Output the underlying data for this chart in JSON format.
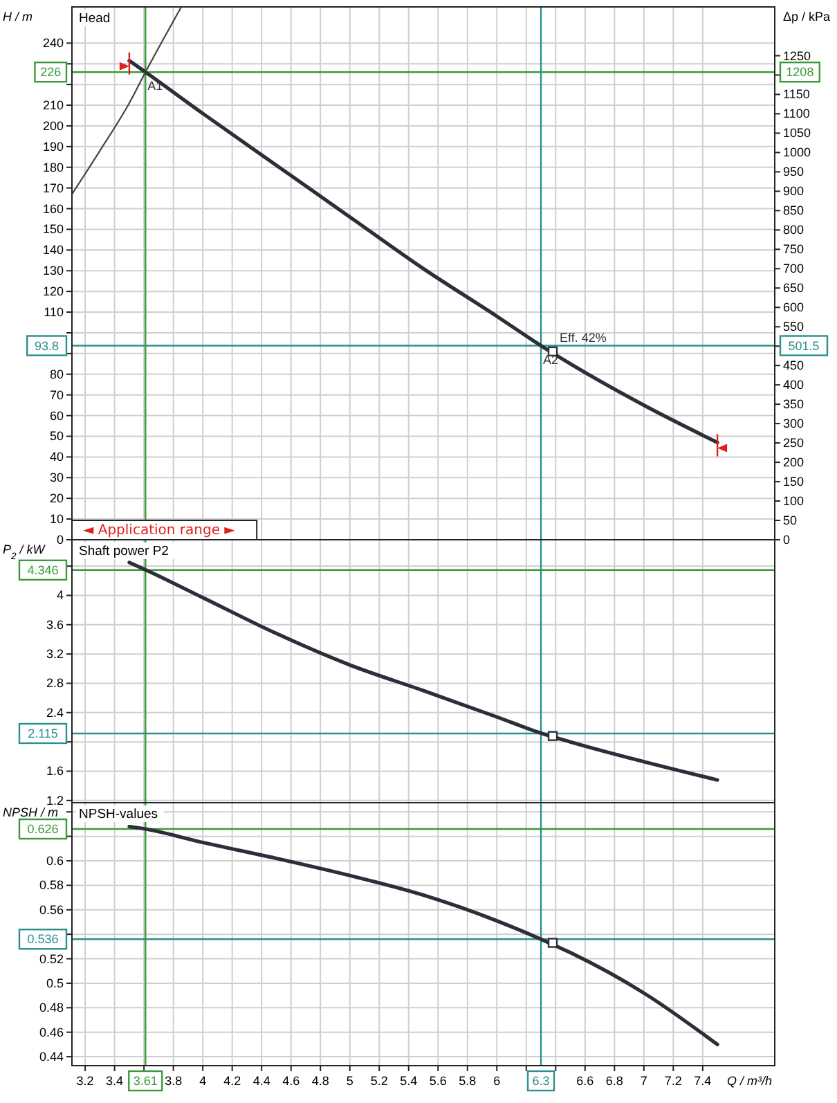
{
  "chart_data": [
    {
      "type": "line",
      "title": "Head",
      "ylabel": "H / m",
      "y2label": "Δp / kPa",
      "xlim": [
        3.11,
        7.89
      ],
      "xticks": [
        3.2,
        3.4,
        3.6,
        3.8,
        4,
        4.2,
        4.4,
        4.6,
        4.8,
        5,
        5.2,
        5.4,
        5.6,
        5.8,
        6,
        6.2,
        6.4,
        6.6,
        6.8,
        7,
        7.2,
        7.4
      ],
      "ylim": [
        0,
        257.5
      ],
      "yticks": [
        0,
        10,
        20,
        30,
        40,
        50,
        60,
        70,
        80,
        {
          "value": 90,
          "label": null
        },
        {
          "value": 100,
          "label": null
        },
        110,
        120,
        130,
        140,
        150,
        160,
        170,
        180,
        190,
        200,
        210,
        {
          "value": 220,
          "label": null
        },
        {
          "value": 230,
          "label": null
        },
        240
      ],
      "y2lim": [
        0,
        1376
      ],
      "y2ticks": [
        0,
        50,
        100,
        150,
        200,
        250,
        300,
        350,
        400,
        450,
        {
          "value": 500,
          "label": null
        },
        550,
        600,
        650,
        700,
        750,
        800,
        850,
        900,
        950,
        1000,
        1050,
        1100,
        1150,
        {
          "value": 1200,
          "label": null
        },
        1250
      ],
      "tick_labels": "y",
      "grid": true,
      "series": [
        {
          "color": "#2b2f3a",
          "x": [
            3.5,
            3.61,
            4.0,
            4.5,
            5.0,
            5.5,
            6.0,
            6.3,
            6.5,
            7.0,
            7.5
          ],
          "values": [
            231.5,
            226,
            206,
            181,
            156,
            131,
            108,
            93.8,
            85,
            65,
            47
          ]
        },
        {
          "color": "#444444",
          "x": [
            3.11,
            3.3,
            3.5,
            3.61,
            3.85
          ],
          "values": [
            167,
            188,
            211,
            226,
            257
          ]
        },
        {
          "type": "scatter",
          "marker": "square",
          "color": "#2b2f3a",
          "x": [
            6.38
          ],
          "values": [
            91
          ]
        }
      ],
      "ref_lines": [
        {
          "axis": "y",
          "value": 226,
          "label": "226",
          "color": "#3a9a3a"
        },
        {
          "axis": "y",
          "value": 93.8,
          "label": "93.8",
          "color": "#2a8f8f"
        },
        {
          "axis": "x",
          "value": 3.61,
          "color": "#3a9a3a"
        },
        {
          "axis": "x",
          "value": 6.3,
          "color": "#2a8f8f"
        }
      ],
      "annotations": [
        {
          "text": "1208",
          "x": 7.89,
          "y": 226
        },
        {
          "text": "501.5",
          "x": 7.89,
          "y": 93.8
        },
        {
          "text": "A1",
          "x": 3.61,
          "y": 226
        },
        {
          "text": "A2",
          "x": 6.3,
          "y": 93.8
        },
        {
          "text": "Eff.  42%",
          "x": 6.38,
          "y": 93.8
        },
        "◄ Application range ►"
      ]
    },
    {
      "type": "line",
      "title": "Shaft power P2",
      "ylabel": "P$_{2}$ / kW",
      "xlim": [
        3.11,
        7.89
      ],
      "xticks": [
        3.2,
        3.4,
        3.6,
        3.8,
        4,
        4.2,
        4.4,
        4.6,
        4.8,
        5,
        5.2,
        5.4,
        5.6,
        5.8,
        6,
        6.2,
        6.4,
        6.6,
        6.8,
        7,
        7.2,
        7.4
      ],
      "ylim": [
        1.17,
        4.76
      ],
      "yticks": [
        1.2,
        1.6,
        {
          "value": 2,
          "label": null
        },
        2.4,
        2.8,
        3.2,
        3.6,
        4,
        {
          "value": 4.4,
          "label": null
        }
      ],
      "tick_labels": "y",
      "grid": true,
      "series": [
        {
          "color": "#2b2f3a",
          "x": [
            3.5,
            3.61,
            4.0,
            4.5,
            5.0,
            5.5,
            6.0,
            6.3,
            6.5,
            7.0,
            7.5
          ],
          "values": [
            4.45,
            4.35,
            3.97,
            3.48,
            3.05,
            2.7,
            2.34,
            2.12,
            2.0,
            1.73,
            1.48
          ]
        },
        {
          "type": "scatter",
          "marker": "square",
          "color": "#2b2f3a",
          "x": [
            6.38
          ],
          "values": [
            2.08
          ]
        }
      ],
      "ref_lines": [
        {
          "axis": "y",
          "value": 4.346,
          "label": "4.346",
          "color": "#3a9a3a"
        },
        {
          "axis": "y",
          "value": 2.115,
          "label": "2.115",
          "color": "#2a8f8f"
        },
        {
          "axis": "x",
          "value": 3.61,
          "color": "#3a9a3a"
        },
        {
          "axis": "x",
          "value": 6.3,
          "color": "#2a8f8f"
        }
      ]
    },
    {
      "type": "line",
      "title": "NPSH-values",
      "ylabel": "NPSH / m",
      "xlabel": "Q / m³/h",
      "xlim": [
        3.11,
        7.89
      ],
      "xticks": [
        3.2,
        3.4,
        {
          "value": 3.6,
          "label": null
        },
        3.8,
        4,
        4.2,
        4.4,
        4.6,
        4.8,
        5,
        5.2,
        5.4,
        5.6,
        5.8,
        6,
        {
          "value": 6.2,
          "label": null
        },
        {
          "value": 6.4,
          "label": null
        },
        6.6,
        6.8,
        7,
        7.2,
        7.4
      ],
      "ylim": [
        0.4327,
        0.6475
      ],
      "yticks": [
        0.44,
        0.46,
        0.48,
        0.5,
        0.52,
        {
          "value": 0.54,
          "label": null
        },
        0.56,
        0.58,
        0.6,
        {
          "value": 0.62,
          "label": null
        },
        {
          "value": 0.64,
          "label": null
        }
      ],
      "grid": true,
      "series": [
        {
          "color": "#2b2f3a",
          "x": [
            3.5,
            3.61,
            4.0,
            4.5,
            5.0,
            5.5,
            6.0,
            6.3,
            6.5,
            7.0,
            7.5
          ],
          "values": [
            0.628,
            0.626,
            0.615,
            0.602,
            0.588,
            0.572,
            0.551,
            0.536,
            0.525,
            0.492,
            0.45
          ]
        },
        {
          "type": "scatter",
          "marker": "square",
          "color": "#2b2f3a",
          "x": [
            6.38
          ],
          "values": [
            0.533
          ]
        }
      ],
      "ref_lines": [
        {
          "axis": "y",
          "value": 0.626,
          "label": "0.626",
          "color": "#3a9a3a"
        },
        {
          "axis": "y",
          "value": 0.536,
          "label": "0.536",
          "color": "#2a8f8f"
        },
        {
          "axis": "x",
          "value": 3.61,
          "label": "3.61",
          "color": "#3a9a3a"
        },
        {
          "axis": "x",
          "value": 6.3,
          "label": "6.3",
          "color": "#2a8f8f"
        }
      ]
    }
  ]
}
